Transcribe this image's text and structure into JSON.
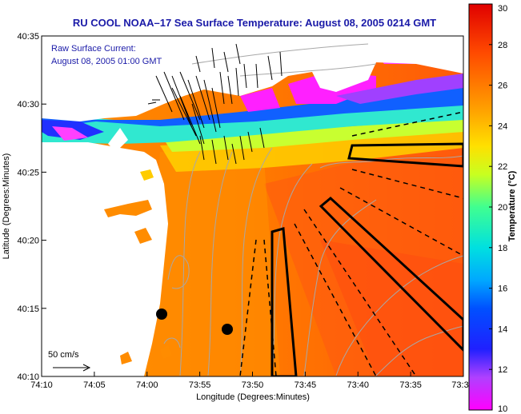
{
  "chart_data": {
    "type": "heatmap",
    "title": "RU COOL  NOAA–17  Sea Surface Temperature:  August 08, 2005 0214 GMT",
    "xlabel": "Longitude (Degrees:Minutes)",
    "ylabel": "Latitude (Degrees:Minutes)",
    "x_ticks": [
      "74:10",
      "74:05",
      "74:00",
      "73:55",
      "73:50",
      "73:45",
      "73:40",
      "73:35",
      "73:3"
    ],
    "y_ticks": [
      "40:35",
      "40:30",
      "40:25",
      "40:20",
      "40:15",
      "40:10"
    ],
    "xlim_minutes_west": [
      10,
      -30
    ],
    "ylim_minutes_north": [
      10,
      35
    ],
    "colorbar": {
      "label": "Temperature (°C)",
      "ticks": [
        "10",
        "12",
        "14",
        "16",
        "18",
        "20",
        "22",
        "24",
        "26",
        "28",
        "30"
      ],
      "range": [
        10,
        30
      ]
    },
    "annotations": {
      "current_title": "Raw Surface Current:",
      "current_time": "August 08, 2005 01:00 GMT",
      "scale_label": "50 cm/s"
    }
  }
}
